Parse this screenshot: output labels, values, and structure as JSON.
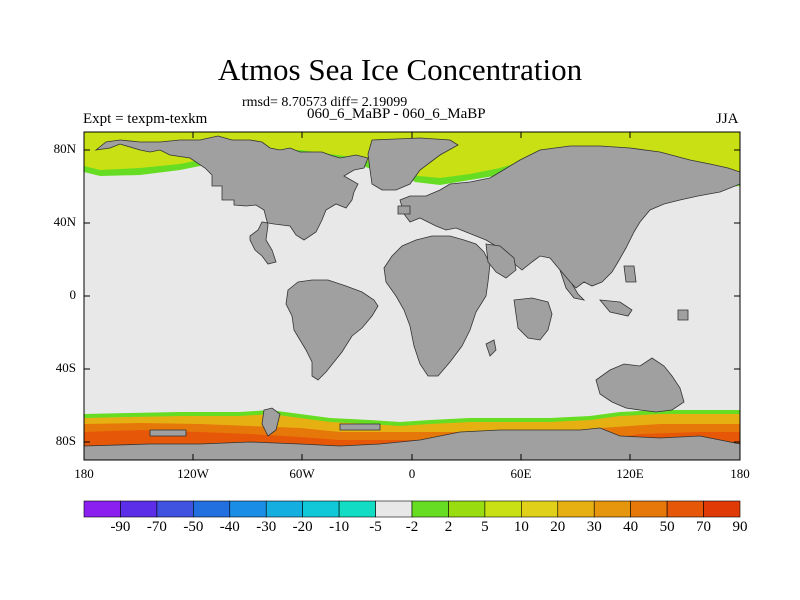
{
  "header": {
    "title": "Atmos Sea Ice Concentration",
    "stats": "rmsd= 8.70573  diff= 2.19099",
    "experiment": "Expt = texpm-texkm",
    "period": "060_6_MaBP - 060_6_MaBP",
    "season": "JJA"
  },
  "axes": {
    "y_ticks": [
      "80N",
      "40N",
      "0",
      "40S",
      "80S"
    ],
    "x_ticks": [
      "180",
      "120W",
      "60W",
      "0",
      "60E",
      "120E",
      "180"
    ]
  },
  "colorbar": {
    "labels": [
      "-90",
      "-70",
      "-50",
      "-40",
      "-30",
      "-20",
      "-10",
      "-5",
      "-2",
      "2",
      "5",
      "10",
      "20",
      "30",
      "40",
      "50",
      "70",
      "90"
    ],
    "colors": [
      "#8a1ff0",
      "#5c2ee8",
      "#3f52e0",
      "#2270e0",
      "#1a8ee6",
      "#14aee0",
      "#10c8d8",
      "#12dcc4",
      "#e8e8e8",
      "#66dd22",
      "#99dd11",
      "#c8e014",
      "#e0d01a",
      "#e6b012",
      "#e6960c",
      "#e6780a",
      "#e65808",
      "#e03a06"
    ]
  },
  "map_colors": {
    "land": "#a0a0a0",
    "ocean": "#e8e8e8",
    "arctic_ice": "#c8e014",
    "ice_edge": "#66dd22",
    "antarctic_outer": "#e6b012",
    "antarctic_mid": "#e6780a",
    "antarctic_inner": "#e65808"
  }
}
